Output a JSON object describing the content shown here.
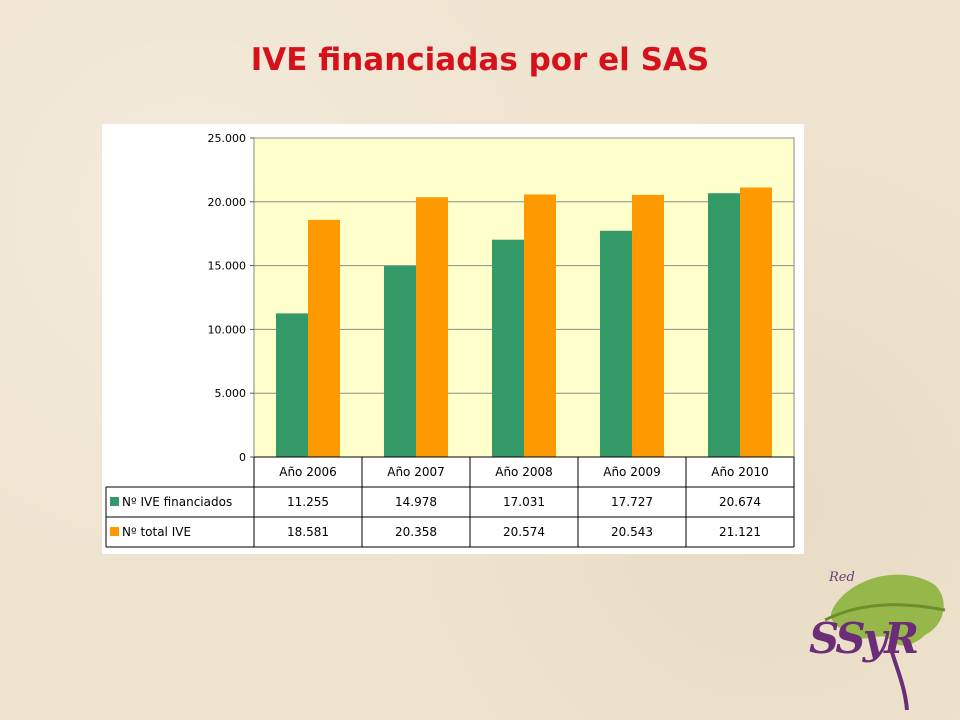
{
  "title": "IVE financiadas por el SAS",
  "logo": {
    "text_top": "Red",
    "text_main": "SSyR"
  },
  "colors": {
    "title": "#d5121c",
    "plot_bg": "#ffffcc",
    "series1": "#339966",
    "series2": "#ff9900"
  },
  "chart_data": {
    "type": "bar",
    "categories": [
      "Año 2006",
      "Año 2007",
      "Año 2008",
      "Año 2009",
      "Año 2010"
    ],
    "series": [
      {
        "name": "Nº IVE financiados",
        "color": "#339966",
        "values": [
          11255,
          14978,
          17031,
          17727,
          20674
        ],
        "labels": [
          "11.255",
          "14.978",
          "17.031",
          "17.727",
          "20.674"
        ]
      },
      {
        "name": "Nº total IVE",
        "color": "#ff9900",
        "values": [
          18581,
          20358,
          20574,
          20543,
          21121
        ],
        "labels": [
          "18.581",
          "20.358",
          "20.574",
          "20.543",
          "21.121"
        ]
      }
    ],
    "y_ticks": [
      0,
      5000,
      10000,
      15000,
      20000,
      25000
    ],
    "y_tick_labels": [
      "0",
      "5.000",
      "10.000",
      "15.000",
      "20.000",
      "25.000"
    ],
    "ylim": [
      0,
      25000
    ],
    "grid": true,
    "legend": "data-table-left"
  }
}
